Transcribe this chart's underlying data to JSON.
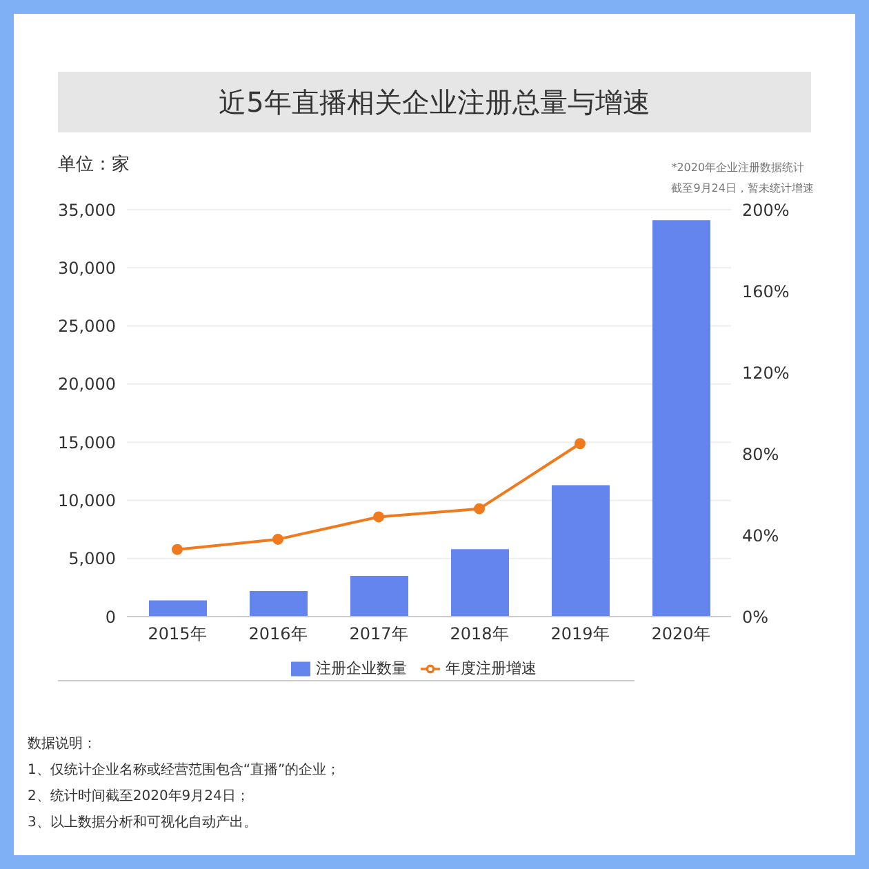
{
  "chart_data": {
    "type": "bar",
    "title": "近5年直播相关企业注册总量与增速",
    "ylabel": "单位：家",
    "categories": [
      "2015年",
      "2016年",
      "2017年",
      "2018年",
      "2019年",
      "2020年"
    ],
    "series": [
      {
        "name": "注册企业数量",
        "color": "#6485ee",
        "values": [
          1400,
          2200,
          3500,
          5800,
          11300,
          34100
        ]
      },
      {
        "name": "年度注册增速",
        "type": "line",
        "color": "#f07a1e",
        "axis": "y2",
        "values": [
          33,
          38,
          49,
          53,
          85,
          null
        ]
      }
    ],
    "ylim": [
      0,
      35000
    ],
    "yticks": [
      0,
      {
        "value": 5000,
        "label": "5,000"
      },
      {
        "value": 10000,
        "label": "10,000"
      },
      {
        "value": 15000,
        "label": "15,000"
      },
      {
        "value": 20000,
        "label": "20,000"
      },
      {
        "value": 25000,
        "label": "25,000"
      },
      {
        "value": 30000,
        "label": "30,000"
      },
      {
        "value": 35000,
        "label": "35,000"
      }
    ],
    "y2lim": [
      0,
      200
    ],
    "y2ticks": [
      {
        "value": 0,
        "label": "0%"
      },
      {
        "value": 40,
        "label": "40%"
      },
      {
        "value": 80,
        "label": "80%"
      },
      {
        "value": 120,
        "label": "120%"
      },
      {
        "value": 160,
        "label": "160%"
      },
      {
        "value": 200,
        "label": "200%"
      }
    ],
    "grid": "y",
    "legend": "bottom",
    "marker": "circle",
    "annotations": [
      "*2020年企业注册数据统计",
      "截至9月24日，暂未统计增速",
      "数据说明：",
      "1、仅统计企业名称或经营范围包含“直播”的企业；",
      "2、统计时间截至2020年9月24日；",
      "3、以上数据分析和可视化自动产出。"
    ]
  }
}
